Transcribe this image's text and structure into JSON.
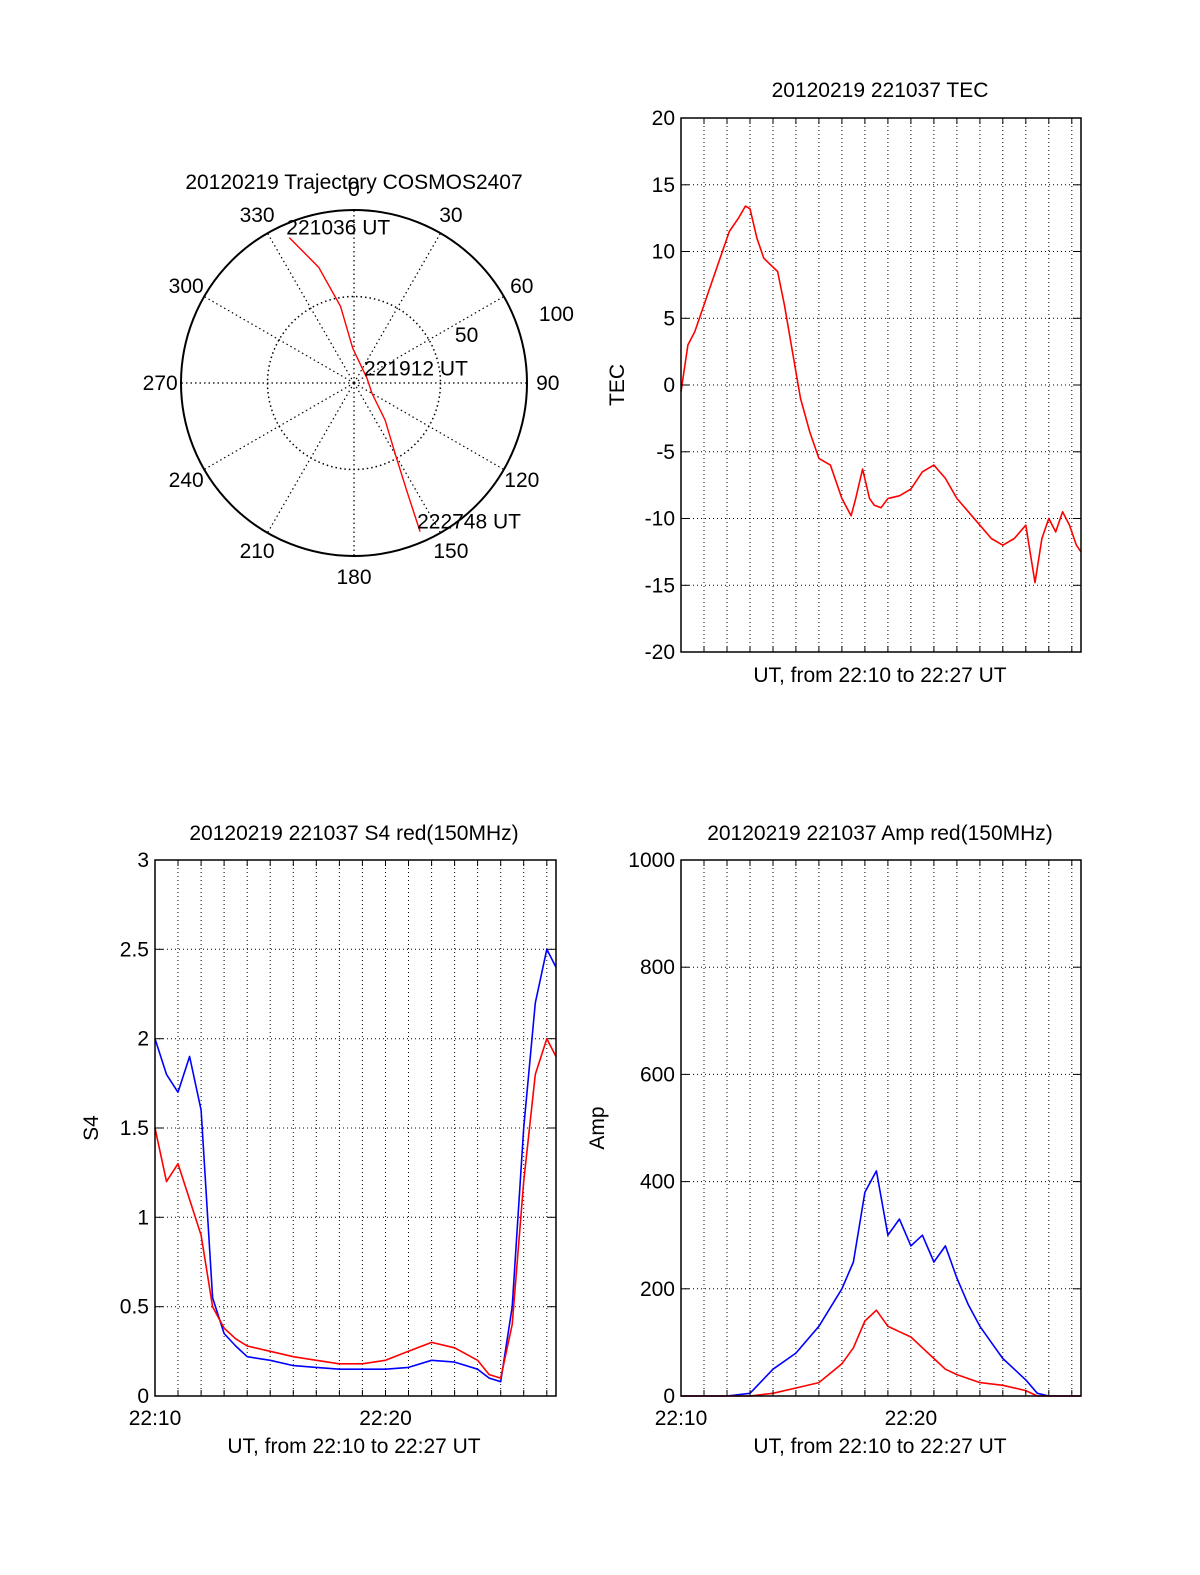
{
  "colors": {
    "red": "#ff0000",
    "blue": "#0000ff",
    "axis": "#000000",
    "grid": "#000000"
  },
  "chart_data": [
    {
      "id": "polar",
      "type": "polar-trajectory",
      "title": "20120219 Trajectory COSMOS2407",
      "angle_labels": [
        "0",
        "30",
        "60",
        "90",
        "120",
        "150",
        "180",
        "210",
        "240",
        "270",
        "300",
        "330"
      ],
      "radius_labels": [
        "50",
        "100"
      ],
      "rmax": 100,
      "series": [
        {
          "color": "#ff0000",
          "points": [
            [
              336,
              92
            ],
            [
              343,
              70
            ],
            [
              350,
              45
            ],
            [
              358,
              20
            ],
            [
              70,
              8
            ],
            [
              120,
              12
            ],
            [
              140,
              28
            ],
            [
              150,
              48
            ],
            [
              154,
              70
            ],
            [
              156,
              94
            ]
          ]
        }
      ],
      "annotations": [
        {
          "text": "221036 UT",
          "az": 336,
          "r": 92
        },
        {
          "text": "221912 UT",
          "az": 70,
          "r": 8
        },
        {
          "text": "222748 UT",
          "az": 156,
          "r": 94
        }
      ]
    },
    {
      "id": "tec",
      "type": "line",
      "title": "20120219 221037 TEC",
      "ylabel": "TEC",
      "xlabel": "UT, from 22:10 to 22:27 UT",
      "ylim": [
        -20,
        20
      ],
      "yticks": [
        "-20",
        "-15",
        "-10",
        "-5",
        "0",
        "5",
        "10",
        "15",
        "20"
      ],
      "xlim_minutes": [
        0,
        17.4
      ],
      "xticklabels": [],
      "grid": true,
      "series": [
        {
          "color": "#ff0000",
          "x": [
            0.0,
            0.3,
            0.6,
            0.9,
            1.2,
            1.5,
            1.8,
            2.1,
            2.5,
            2.8,
            3.0,
            3.3,
            3.6,
            3.9,
            4.2,
            4.5,
            4.8,
            5.2,
            5.6,
            6.0,
            6.5,
            7.0,
            7.4,
            7.6,
            7.9,
            8.2,
            8.4,
            8.7,
            9.0,
            9.5,
            10.0,
            10.5,
            11.0,
            11.5,
            12.0,
            12.5,
            13.0,
            13.5,
            14.0,
            14.5,
            15.0,
            15.4,
            15.7,
            16.0,
            16.3,
            16.6,
            16.9,
            17.2,
            17.4
          ],
          "y": [
            -0.5,
            3,
            4,
            5.5,
            7,
            8.5,
            10,
            11.5,
            12.5,
            13.4,
            13.2,
            11,
            9.5,
            9,
            8.5,
            6,
            3,
            -1,
            -3.5,
            -5.5,
            -6,
            -8.5,
            -9.8,
            -8.5,
            -6.3,
            -8.5,
            -9,
            -9.2,
            -8.5,
            -8.3,
            -7.8,
            -6.5,
            -6,
            -7,
            -8.5,
            -9.5,
            -10.5,
            -11.5,
            -12,
            -11.5,
            -10.5,
            -14.8,
            -11.5,
            -10,
            -11,
            -9.5,
            -10.5,
            -12,
            -12.5
          ]
        }
      ]
    },
    {
      "id": "s4",
      "type": "line",
      "title": "20120219 221037 S4 red(150MHz)",
      "ylabel": "S4",
      "xlabel": "UT, from 22:10 to 22:27 UT",
      "ylim": [
        0,
        3
      ],
      "yticks": [
        "0",
        "0.5",
        "1",
        "1.5",
        "2",
        "2.5",
        "3"
      ],
      "xlim_minutes": [
        0,
        17.4
      ],
      "xticklabels": [
        {
          "text": "22:10",
          "minute": 0
        },
        {
          "text": "22:20",
          "minute": 10
        }
      ],
      "grid": true,
      "series": [
        {
          "color": "#0000ff",
          "x": [
            0.0,
            0.5,
            1.0,
            1.5,
            2.0,
            2.5,
            3.0,
            3.5,
            4.0,
            5.0,
            6.0,
            7.0,
            8.0,
            9.0,
            10.0,
            11.0,
            12.0,
            13.0,
            14.0,
            14.5,
            15.0,
            15.5,
            16.0,
            16.5,
            17.0,
            17.4
          ],
          "y": [
            2.0,
            1.8,
            1.7,
            1.9,
            1.6,
            0.55,
            0.35,
            0.28,
            0.22,
            0.2,
            0.17,
            0.16,
            0.15,
            0.15,
            0.15,
            0.16,
            0.2,
            0.19,
            0.15,
            0.1,
            0.08,
            0.5,
            1.5,
            2.2,
            2.5,
            2.4
          ]
        },
        {
          "color": "#ff0000",
          "x": [
            0.0,
            0.5,
            1.0,
            1.5,
            2.0,
            2.5,
            3.0,
            3.5,
            4.0,
            5.0,
            6.0,
            7.0,
            8.0,
            9.0,
            10.0,
            11.0,
            12.0,
            13.0,
            14.0,
            14.5,
            15.0,
            15.5,
            16.0,
            16.5,
            17.0,
            17.4
          ],
          "y": [
            1.5,
            1.2,
            1.3,
            1.1,
            0.9,
            0.5,
            0.38,
            0.32,
            0.28,
            0.25,
            0.22,
            0.2,
            0.18,
            0.18,
            0.2,
            0.25,
            0.3,
            0.27,
            0.2,
            0.12,
            0.1,
            0.4,
            1.2,
            1.8,
            2.0,
            1.9
          ]
        }
      ]
    },
    {
      "id": "amp",
      "type": "line",
      "title": "20120219 221037 Amp red(150MHz)",
      "ylabel": "Amp",
      "xlabel": "UT, from 22:10 to 22:27 UT",
      "ylim": [
        0,
        1000
      ],
      "yticks": [
        "0",
        "200",
        "400",
        "600",
        "800",
        "1000"
      ],
      "xlim_minutes": [
        0,
        17.4
      ],
      "xticklabels": [
        {
          "text": "22:10",
          "minute": 0
        },
        {
          "text": "22:20",
          "minute": 10
        }
      ],
      "grid": true,
      "series": [
        {
          "color": "#0000ff",
          "x": [
            0.0,
            2.0,
            3.0,
            4.0,
            5.0,
            6.0,
            7.0,
            7.5,
            8.0,
            8.5,
            9.0,
            9.5,
            10.0,
            10.5,
            11.0,
            11.5,
            12.0,
            12.5,
            13.0,
            13.5,
            14.0,
            14.5,
            15.0,
            15.5,
            16.0,
            17.4
          ],
          "y": [
            0,
            0,
            5,
            50,
            80,
            130,
            200,
            250,
            380,
            420,
            300,
            330,
            280,
            300,
            250,
            280,
            220,
            170,
            130,
            100,
            70,
            50,
            30,
            5,
            0,
            0
          ]
        },
        {
          "color": "#ff0000",
          "x": [
            0.0,
            3.0,
            4.0,
            5.0,
            6.0,
            7.0,
            7.5,
            8.0,
            8.5,
            9.0,
            9.5,
            10.0,
            10.5,
            11.0,
            11.5,
            12.0,
            13.0,
            14.0,
            15.0,
            15.5,
            17.4
          ],
          "y": [
            0,
            0,
            5,
            15,
            25,
            60,
            90,
            140,
            160,
            130,
            120,
            110,
            90,
            70,
            50,
            40,
            25,
            20,
            10,
            0,
            0
          ]
        }
      ]
    }
  ]
}
